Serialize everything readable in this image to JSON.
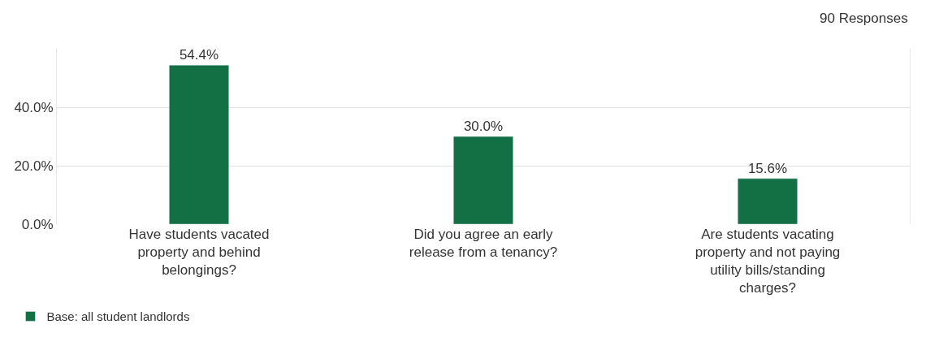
{
  "chart_data": {
    "type": "bar",
    "categories": [
      "Have students vacated property and behind belongings?",
      "Did you agree an early release from a tenancy?",
      "Are students vacating property and not paying utility bills/standing charges?"
    ],
    "series": [
      {
        "name": "Base: all student landlords",
        "color": "#137044",
        "values": [
          54.4,
          30.0,
          15.6
        ],
        "value_labels": [
          "54.4%",
          "30.0%",
          "15.6%"
        ]
      }
    ],
    "ylim": [
      0,
      60
    ],
    "yticks": [
      {
        "value": 0,
        "label": "0.0%"
      },
      {
        "value": 20,
        "label": "20.0%"
      },
      {
        "value": 40,
        "label": "40.0%"
      }
    ],
    "grid": "y",
    "legend": "bottom left",
    "annotations": [
      "90 Responses"
    ]
  }
}
